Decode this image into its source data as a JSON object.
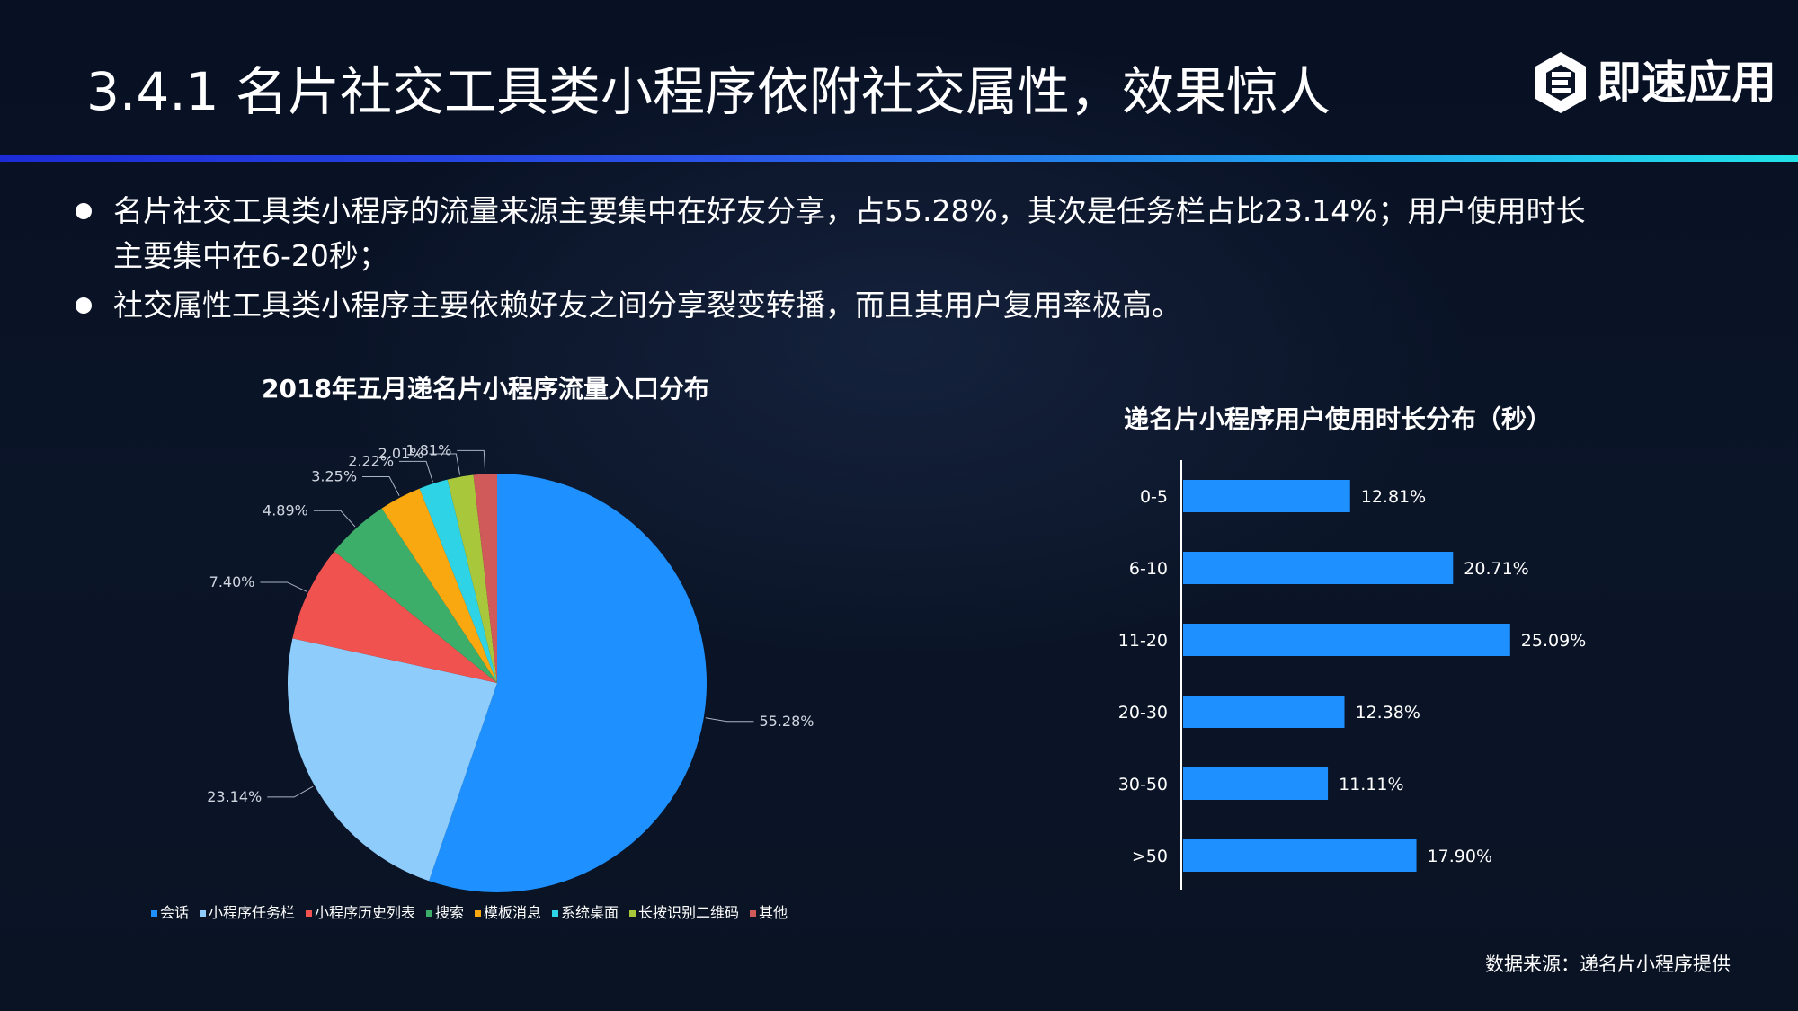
{
  "slide": {
    "title": "3.4.1  名片社交工具类小程序依附社交属性，效果惊人",
    "brand": "即速应用",
    "bullets": [
      "名片社交工具类小程序的流量来源主要集中在好友分享，占55.28%，其次是任务栏占比23.14%；用户使用时长主要集中在6-20秒；",
      "社交属性工具类小程序主要依赖好友之间分享裂变转播，而且其用户复用率极高。"
    ],
    "source_note": "数据来源：递名片小程序提供"
  },
  "colors": {
    "title_rule_start": "#1c2bd6",
    "title_rule_end": "#22e3e8",
    "bar": "#1e90ff"
  },
  "chart_data": [
    {
      "type": "pie",
      "title": "2018年五月递名片小程序流量入口分布",
      "categories": [
        "会话",
        "小程序任务栏",
        "小程序历史列表",
        "搜索",
        "模板消息",
        "系统桌面",
        "长按识别二维码",
        "其他"
      ],
      "values": [
        55.28,
        23.14,
        7.4,
        4.89,
        3.25,
        2.22,
        2.01,
        1.81
      ],
      "labels": [
        "55.28%",
        "23.14%",
        "7.40%",
        "4.89%",
        "3.25%",
        "2.22%",
        "2.01%",
        "1.81%"
      ],
      "colors": [
        "#1e90ff",
        "#8ecdfb",
        "#f0524f",
        "#3dae6a",
        "#f9a80f",
        "#2ed3e6",
        "#a9c73b",
        "#d05a5a"
      ],
      "legend": "bottom"
    },
    {
      "type": "bar",
      "orientation": "horizontal",
      "title": "递名片小程序用户使用时长分布（秒）",
      "categories": [
        "0-5",
        "6-10",
        "11-20",
        "20-30",
        "30-50",
        ">50"
      ],
      "values": [
        12.81,
        20.71,
        25.09,
        12.38,
        11.11,
        17.9
      ],
      "labels": [
        "12.81%",
        "20.71%",
        "25.09%",
        "12.38%",
        "11.11%",
        "17.90%"
      ],
      "color": "#1e90ff",
      "grid": false
    }
  ]
}
